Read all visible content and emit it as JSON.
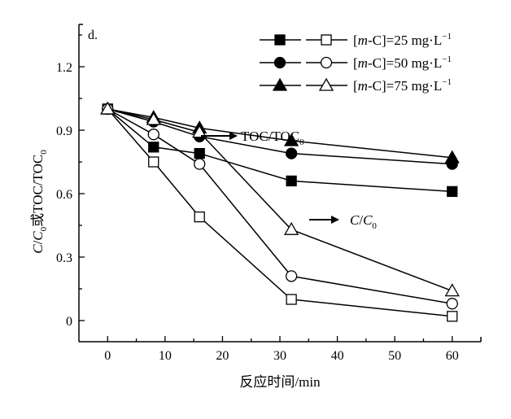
{
  "chart_data": {
    "type": "line",
    "panel_label": "d.",
    "xlabel": "反应时间/min",
    "ylabel": {
      "parts": [
        "C",
        "/",
        "C",
        "0",
        "或TOC/TOC",
        "0"
      ]
    },
    "xlim": [
      -5,
      65
    ],
    "ylim": [
      -0.1,
      1.4
    ],
    "xticks": [
      0,
      10,
      20,
      30,
      40,
      50,
      60
    ],
    "yticks": [
      0,
      0.3,
      0.6,
      0.9,
      1.2
    ],
    "ytick_labels": [
      "0",
      "0.3",
      "0.6",
      "0.9",
      "1.2"
    ],
    "grid": false,
    "legend_position": "top-right",
    "legend": [
      {
        "prefix": "[",
        "italic": "m",
        "suffix": "-C]=25 mg·L",
        "sup": "−1",
        "marker": "square"
      },
      {
        "prefix": "[",
        "italic": "m",
        "suffix": "-C]=50 mg·L",
        "sup": "−1",
        "marker": "circle"
      },
      {
        "prefix": "[",
        "italic": "m",
        "suffix": "-C]=75 mg·L",
        "sup": "−1",
        "marker": "triangle"
      }
    ],
    "annotations": {
      "toc": {
        "text": "TOC/TOC",
        "sub": "0"
      },
      "c": {
        "text": "C",
        "mid": "/",
        "text2": "C",
        "sub": "0"
      }
    },
    "x": [
      0,
      8,
      16,
      32,
      60
    ],
    "series": [
      {
        "group": "TOC/TOC0",
        "conc": 25,
        "marker": "square",
        "filled": true,
        "values": [
          1.0,
          0.82,
          0.79,
          0.66,
          0.61
        ]
      },
      {
        "group": "C/C0",
        "conc": 25,
        "marker": "square",
        "filled": false,
        "values": [
          1.0,
          0.75,
          0.49,
          0.1,
          0.02
        ]
      },
      {
        "group": "TOC/TOC0",
        "conc": 50,
        "marker": "circle",
        "filled": true,
        "values": [
          1.0,
          0.94,
          0.87,
          0.79,
          0.74
        ]
      },
      {
        "group": "C/C0",
        "conc": 50,
        "marker": "circle",
        "filled": false,
        "values": [
          1.0,
          0.88,
          0.74,
          0.21,
          0.08
        ]
      },
      {
        "group": "TOC/TOC0",
        "conc": 75,
        "marker": "triangle",
        "filled": true,
        "values": [
          1.0,
          0.96,
          0.91,
          0.85,
          0.77
        ]
      },
      {
        "group": "C/C0",
        "conc": 75,
        "marker": "triangle",
        "filled": false,
        "values": [
          1.0,
          0.95,
          0.89,
          0.43,
          0.14
        ]
      }
    ],
    "colors": {
      "line": "#000000",
      "open_fill": "#ffffff"
    }
  }
}
